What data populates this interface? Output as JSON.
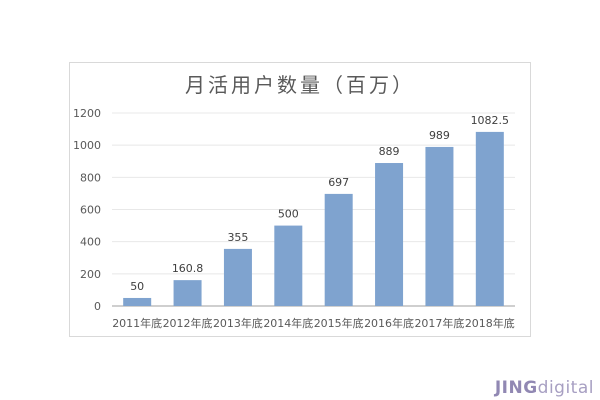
{
  "chart_data": {
    "type": "bar",
    "title": "月活用户数量（百万）",
    "categories": [
      "2011年底",
      "2012年底",
      "2013年底",
      "2014年底",
      "2015年底",
      "2016年底",
      "2017年底",
      "2018年底"
    ],
    "values": [
      50,
      160.8,
      355,
      500,
      697,
      889,
      989,
      1082.5
    ],
    "data_labels": [
      "50",
      "160.8",
      "355",
      "500",
      "697",
      "889",
      "989",
      "1082.5"
    ],
    "xlabel": "",
    "ylabel": "",
    "ylim": [
      0,
      1200
    ],
    "yticks": [
      0,
      200,
      400,
      600,
      800,
      1000,
      1200
    ],
    "grid": true,
    "legend": "none",
    "bar_color": "#7fa3cf"
  },
  "logo": {
    "part1": "JING",
    "part2": "digital"
  }
}
